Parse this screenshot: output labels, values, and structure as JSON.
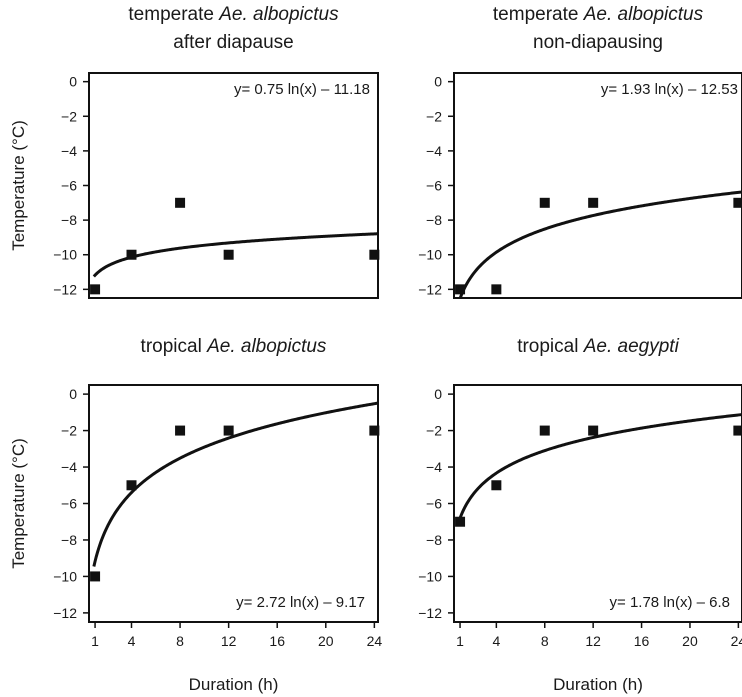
{
  "chart_data": [
    {
      "type": "scatter",
      "title": [
        "temperate ",
        "Ae. albopictus",
        "after diapause"
      ],
      "ylabel": "Temperature (°C)",
      "xlabel": "",
      "equation": "y=  0.75  ln(x) – 11.18",
      "fit": {
        "a": 0.75,
        "b": -11.18
      },
      "x": [
        1,
        4,
        8,
        12,
        24
      ],
      "y": [
        -12,
        -10,
        -7,
        -10,
        -10
      ],
      "xticks": [],
      "yticks": [
        0,
        -2,
        -4,
        -6,
        -8,
        -10,
        -12
      ],
      "xlim": [
        0.5,
        24.3
      ],
      "ylim": [
        -12.5,
        0.5
      ]
    },
    {
      "type": "scatter",
      "title": [
        "temperate ",
        "Ae. albopictus",
        "non-diapausing"
      ],
      "ylabel": "",
      "xlabel": "",
      "equation": "y=  1.93  ln(x) – 12.53",
      "fit": {
        "a": 1.93,
        "b": -12.53
      },
      "x": [
        1,
        4,
        8,
        12,
        24
      ],
      "y": [
        -12,
        -12,
        -7,
        -7,
        -7
      ],
      "xticks": [],
      "yticks": [
        0,
        -2,
        -4,
        -6,
        -8,
        -10,
        -12
      ],
      "xlim": [
        0.5,
        24.3
      ],
      "ylim": [
        -12.5,
        0.5
      ]
    },
    {
      "type": "scatter",
      "title": [
        "tropical ",
        "Ae. albopictus",
        ""
      ],
      "ylabel": "Temperature (°C)",
      "xlabel": "Duration (h)",
      "equation": "y=  2.72  ln(x) – 9.17",
      "fit": {
        "a": 2.72,
        "b": -9.17
      },
      "x": [
        1,
        4,
        8,
        12,
        24
      ],
      "y": [
        -10,
        -5,
        -2,
        -2,
        -2
      ],
      "xticks": [
        "1",
        "4",
        "8",
        "12",
        "16",
        "20",
        "24"
      ],
      "yticks": [
        0,
        -2,
        -4,
        -6,
        -8,
        -10,
        -12
      ],
      "xlim": [
        0.5,
        24.3
      ],
      "ylim": [
        -12.5,
        0.5
      ]
    },
    {
      "type": "scatter",
      "title": [
        "tropical ",
        "Ae. aegypti",
        ""
      ],
      "ylabel": "",
      "xlabel": "Duration (h)",
      "equation": "y=  1.78  ln(x) – 6.8",
      "fit": {
        "a": 1.78,
        "b": -6.8
      },
      "x": [
        1,
        4,
        8,
        12,
        24
      ],
      "y": [
        -7,
        -5,
        -2,
        -2,
        -2
      ],
      "xticks": [
        "1",
        "4",
        "8",
        "12",
        "16",
        "20",
        "24"
      ],
      "yticks": [
        0,
        -2,
        -4,
        -6,
        -8,
        -10,
        -12
      ],
      "xlim": [
        0.5,
        24.3
      ],
      "ylim": [
        -12.5,
        0.5
      ]
    }
  ]
}
